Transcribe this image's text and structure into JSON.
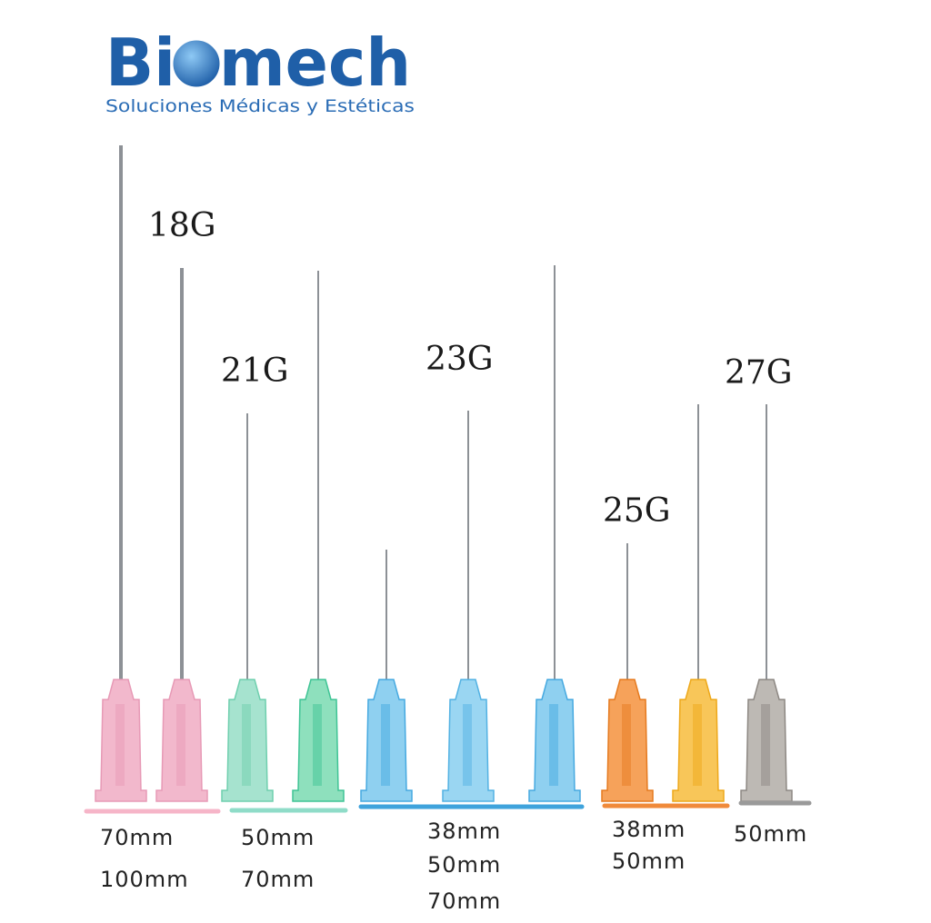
{
  "logo": {
    "brand": "Biomech",
    "tagline": "Soluciones Médicas y Estéticas"
  },
  "groups": [
    {
      "gauge": "18G",
      "lengths": [
        "70mm",
        "100mm"
      ]
    },
    {
      "gauge": "21G",
      "lengths": [
        "50mm",
        "70mm"
      ]
    },
    {
      "gauge": "23G",
      "lengths": [
        "38mm",
        "50mm",
        "70mm"
      ]
    },
    {
      "gauge": "25G",
      "lengths": [
        "38mm",
        "50mm"
      ]
    },
    {
      "gauge": "27G",
      "lengths": [
        "50mm"
      ]
    }
  ]
}
